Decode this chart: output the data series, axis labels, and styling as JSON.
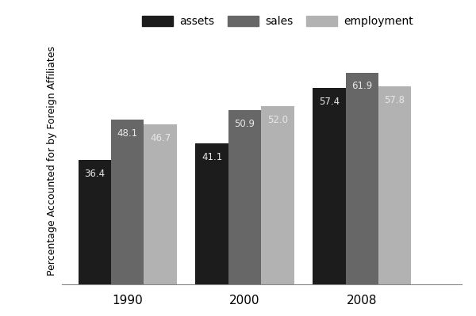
{
  "years": [
    "1990",
    "2000",
    "2008"
  ],
  "assets": [
    36.4,
    41.1,
    57.4
  ],
  "sales": [
    48.1,
    50.9,
    61.9
  ],
  "employment": [
    46.7,
    52.0,
    57.8
  ],
  "assets_color": "#1c1c1c",
  "sales_color": "#676767",
  "employment_color": "#b2b2b2",
  "bar_width": 0.28,
  "ylabel": "Percentage Accounted for by Foreign Affiliates",
  "legend_labels": [
    "assets",
    "sales",
    "employment"
  ],
  "label_color": "#e8e8e8",
  "background_color": "#ffffff",
  "ylim": [
    0,
    72
  ],
  "label_fontsize": 8.5,
  "xtick_fontsize": 11,
  "ylabel_fontsize": 9
}
